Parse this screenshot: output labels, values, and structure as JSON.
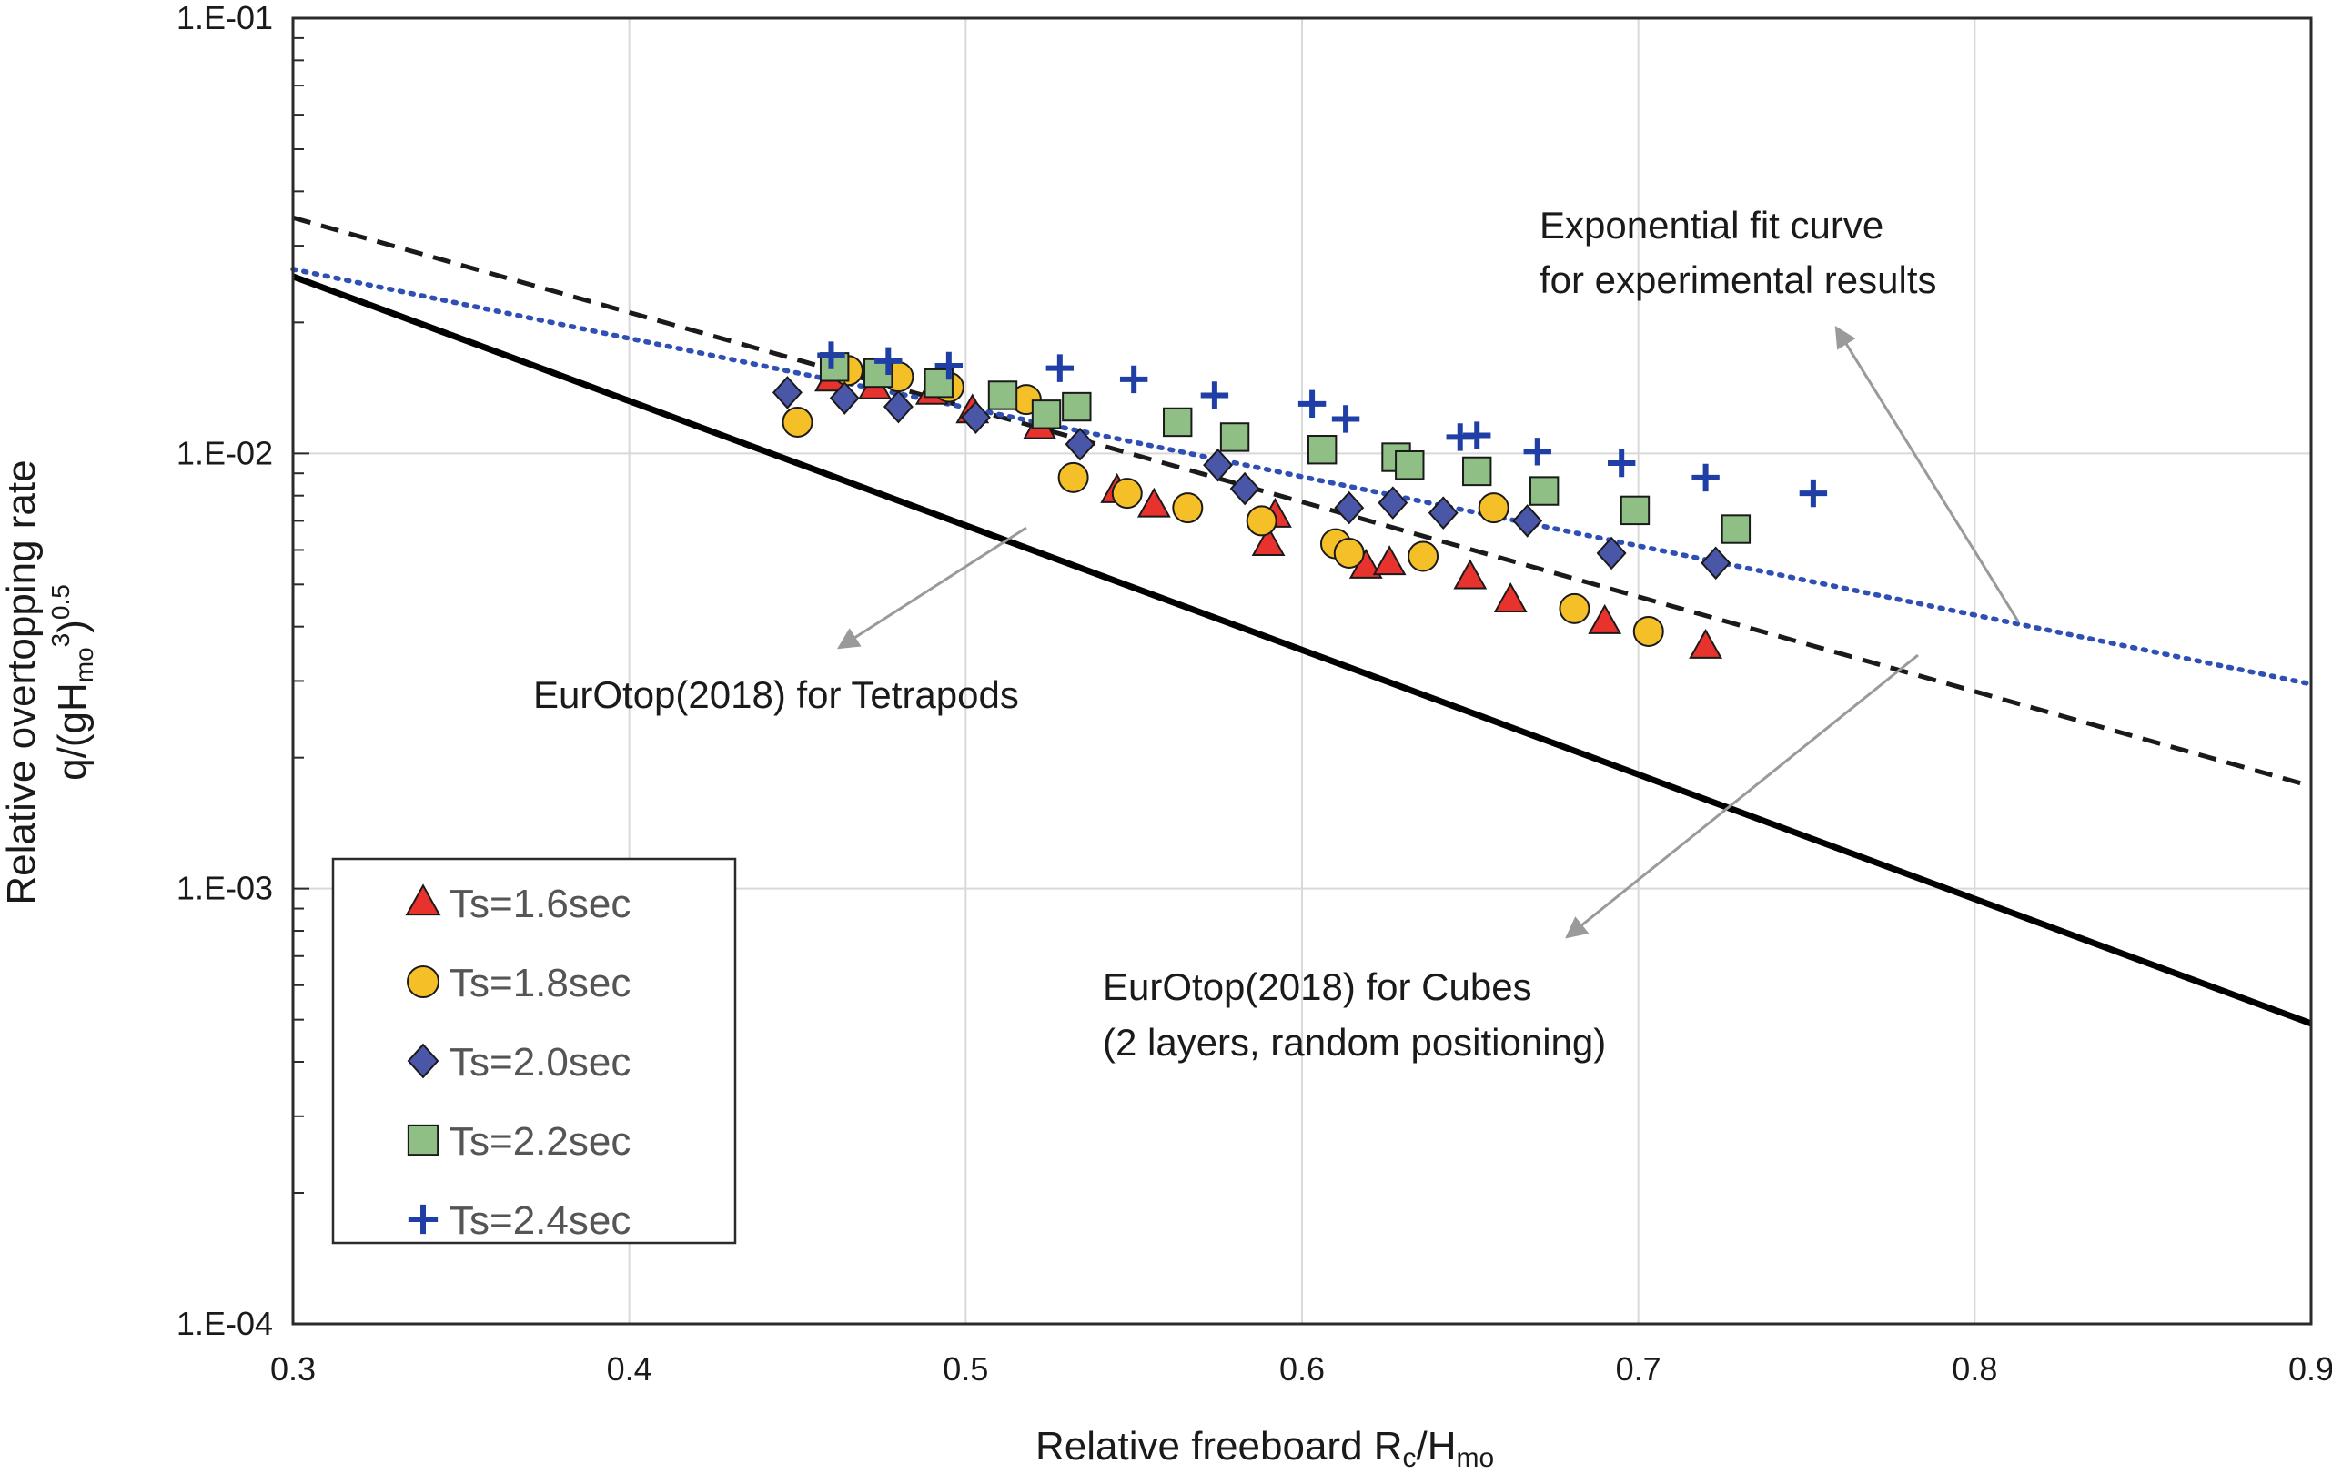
{
  "chart_data": {
    "type": "scatter",
    "xlabel": "Relative freeboard R",
    "xlabel_sub1": "c",
    "xlabel_mid": "/H",
    "xlabel_sub2": "mo",
    "ylabel_line1": "Relative overtopping rate",
    "ylabel_line2_a": "q/(gH",
    "ylabel_line2_sub": "mo",
    "ylabel_line2_sup3": "3",
    "ylabel_line2_b": ")",
    "ylabel_line2_sup05": "0.5",
    "xlim": [
      0.3,
      0.9
    ],
    "ylim": [
      0.0001,
      0.1
    ],
    "yscale": "log",
    "grid": true,
    "x_ticks": [
      "0.3",
      "0.4",
      "0.5",
      "0.6",
      "0.7",
      "0.8",
      "0.9"
    ],
    "y_ticks": [
      "1.E-04",
      "1.E-03",
      "1.E-02",
      "1.E-01"
    ],
    "legend_position": "lower-left",
    "series": [
      {
        "name": "Ts=1.6sec",
        "marker": "triangle",
        "color": "#e8322e",
        "x": [
          0.46,
          0.473,
          0.49,
          0.502,
          0.522,
          0.545,
          0.556,
          0.592,
          0.59,
          0.619,
          0.626,
          0.65,
          0.662,
          0.69,
          0.72
        ],
        "y": [
          0.0148,
          0.0142,
          0.0138,
          0.0125,
          0.0115,
          0.0082,
          0.0076,
          0.0072,
          0.0062,
          0.0055,
          0.0056,
          0.0052,
          0.0046,
          0.0041,
          0.0036
        ]
      },
      {
        "name": "Ts=1.8sec",
        "marker": "circle",
        "color": "#f5c027",
        "x": [
          0.45,
          0.465,
          0.48,
          0.495,
          0.518,
          0.532,
          0.548,
          0.566,
          0.588,
          0.61,
          0.614,
          0.636,
          0.657,
          0.681,
          0.703
        ],
        "y": [
          0.0118,
          0.0155,
          0.015,
          0.0142,
          0.0133,
          0.0088,
          0.0081,
          0.0075,
          0.007,
          0.0062,
          0.0059,
          0.0058,
          0.0075,
          0.0044,
          0.0039
        ]
      },
      {
        "name": "Ts=2.0sec",
        "marker": "diamond",
        "color": "#4a57a8",
        "x": [
          0.447,
          0.464,
          0.48,
          0.503,
          0.534,
          0.575,
          0.583,
          0.614,
          0.627,
          0.642,
          0.667,
          0.692,
          0.723
        ],
        "y": [
          0.0138,
          0.0134,
          0.0128,
          0.0121,
          0.0105,
          0.0094,
          0.0083,
          0.0075,
          0.0077,
          0.0073,
          0.007,
          0.0059,
          0.0056
        ]
      },
      {
        "name": "Ts=2.2sec",
        "marker": "square",
        "color": "#8fbf85",
        "x": [
          0.461,
          0.474,
          0.492,
          0.511,
          0.524,
          0.533,
          0.563,
          0.58,
          0.606,
          0.628,
          0.632,
          0.652,
          0.672,
          0.699,
          0.729
        ],
        "y": [
          0.0158,
          0.0153,
          0.0145,
          0.0136,
          0.0123,
          0.0128,
          0.0118,
          0.0109,
          0.0102,
          0.0098,
          0.0094,
          0.0091,
          0.0082,
          0.0074,
          0.0067
        ]
      },
      {
        "name": "Ts=2.4sec",
        "marker": "plus",
        "color": "#1f3fa6",
        "x": [
          0.46,
          0.477,
          0.495,
          0.528,
          0.55,
          0.574,
          0.603,
          0.613,
          0.647,
          0.652,
          0.67,
          0.695,
          0.72,
          0.752
        ],
        "y": [
          0.0168,
          0.0163,
          0.0159,
          0.0157,
          0.0148,
          0.0136,
          0.013,
          0.012,
          0.0109,
          0.011,
          0.0101,
          0.0095,
          0.0088,
          0.0081
        ]
      }
    ],
    "lines": [
      {
        "name": "EurOtop(2018) for Tetrapods",
        "style": "dashed",
        "color": "#1a1a1a",
        "x": [
          0.3,
          0.9
        ],
        "y": [
          0.0348,
          0.00172
        ]
      },
      {
        "name": "EurOtop(2018) for Cubes",
        "style": "solid",
        "color": "#000000",
        "x": [
          0.3,
          0.9
        ],
        "y": [
          0.0255,
          0.00049
        ]
      },
      {
        "name": "Exponential fit curve",
        "style": "dotted",
        "color": "#2f4fb5",
        "x": [
          0.3,
          0.9
        ],
        "y": [
          0.0265,
          0.00295
        ]
      }
    ],
    "annotations": {
      "fit_line1": "Exponential fit curve",
      "fit_line2": "for experimental results",
      "tetrapods": "EurOtop(2018) for Tetrapods",
      "cubes_line1": "EurOtop(2018) for Cubes",
      "cubes_line2": "(2 layers, random positioning)"
    }
  }
}
